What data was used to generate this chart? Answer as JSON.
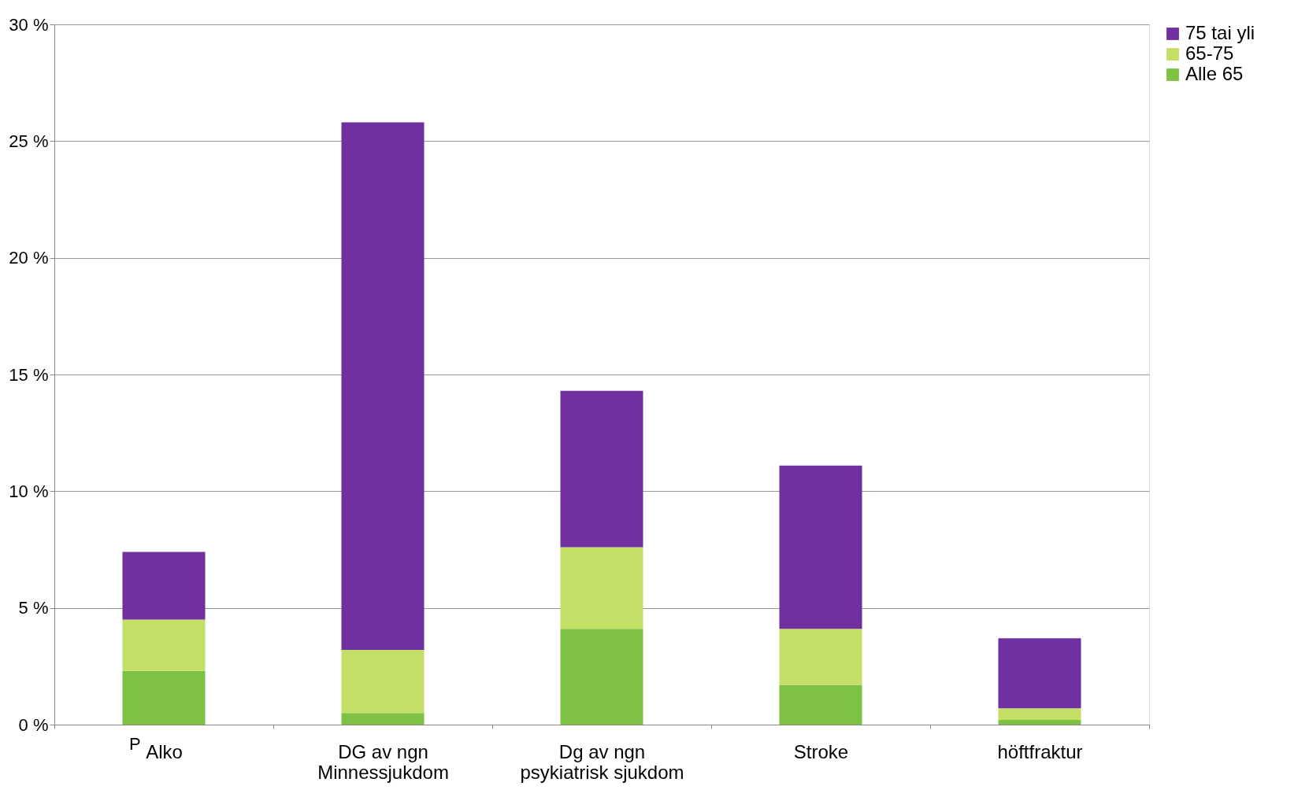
{
  "chart_data": {
    "type": "bar",
    "stacked": true,
    "categories": [
      "Alko",
      "DG av  ngn\nMinnessjukdom",
      "Dg av ngn\n psykiatrisk sjukdom",
      "Stroke",
      "höftfraktur"
    ],
    "series": [
      {
        "name": "Alle 65",
        "color": "#7dc243",
        "values": [
          2.3,
          0.5,
          4.1,
          1.7,
          0.2
        ]
      },
      {
        "name": "65-75",
        "color": "#c4df66",
        "values": [
          2.2,
          2.7,
          3.5,
          2.4,
          0.5
        ]
      },
      {
        "name": "75 tai yli",
        "color": "#7030a0",
        "values": [
          2.9,
          22.6,
          6.7,
          7.0,
          3.0
        ]
      }
    ],
    "ylim": [
      0,
      30
    ],
    "yticks": [
      {
        "value": 0,
        "label": "0 %"
      },
      {
        "value": 5,
        "label": "5 %"
      },
      {
        "value": 10,
        "label": "10 %"
      },
      {
        "value": 15,
        "label": "15 %"
      },
      {
        "value": 20,
        "label": "20 %"
      },
      {
        "value": 25,
        "label": "25 %"
      },
      {
        "value": 30,
        "label": "30 %"
      }
    ],
    "grid": "y",
    "legend": "right",
    "annotations": [
      "P"
    ]
  }
}
